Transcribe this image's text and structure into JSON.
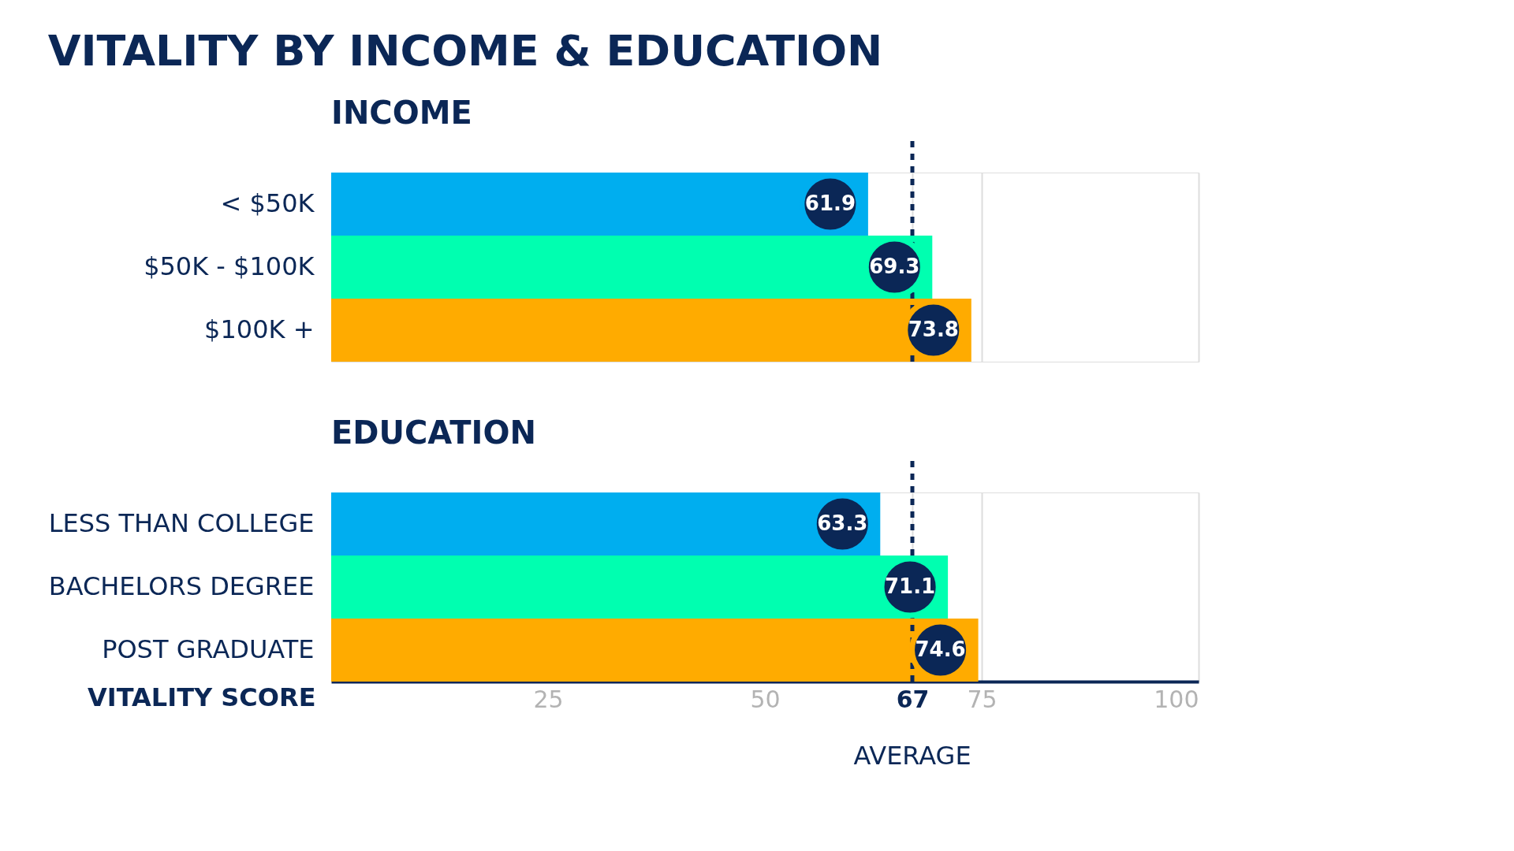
{
  "chart_data": [
    {
      "type": "bar",
      "orientation": "horizontal",
      "title": "VITALITY BY INCOME & EDUCATION",
      "subtitle": "INCOME",
      "categories": [
        "< $50K",
        "$50K - $100K",
        "$100K +"
      ],
      "values": [
        61.9,
        69.3,
        73.8
      ],
      "colors": [
        "#00aeef",
        "#00ffb0",
        "#ffab00"
      ],
      "xlim": [
        0,
        100
      ],
      "xticks": [
        25,
        50,
        67,
        75,
        100
      ],
      "grid": "x",
      "tick_labels": "y",
      "data_labels": true,
      "ref_lines": [
        {
          "axis": "x",
          "value": 67,
          "color": "#0b2756",
          "line_style": "dashed"
        }
      ]
    },
    {
      "type": "bar",
      "orientation": "horizontal",
      "title": "EDUCATION",
      "xlabel": "VITALITY SCORE",
      "categories": [
        "LESS THAN COLLEGE",
        "BACHELORS DEGREE",
        "POST GRADUATE"
      ],
      "values": [
        63.3,
        71.1,
        74.6
      ],
      "colors": [
        "#00aeef",
        "#00ffb0",
        "#ffab00"
      ],
      "xlim": [
        0,
        100
      ],
      "xticks": [
        25,
        50,
        67,
        75,
        100
      ],
      "grid": "x",
      "data_labels": true,
      "ref_lines": [
        {
          "axis": "x",
          "value": 67,
          "label": "AVERAGE",
          "color": "#0b2756",
          "line_style": "dashed"
        }
      ]
    }
  ]
}
